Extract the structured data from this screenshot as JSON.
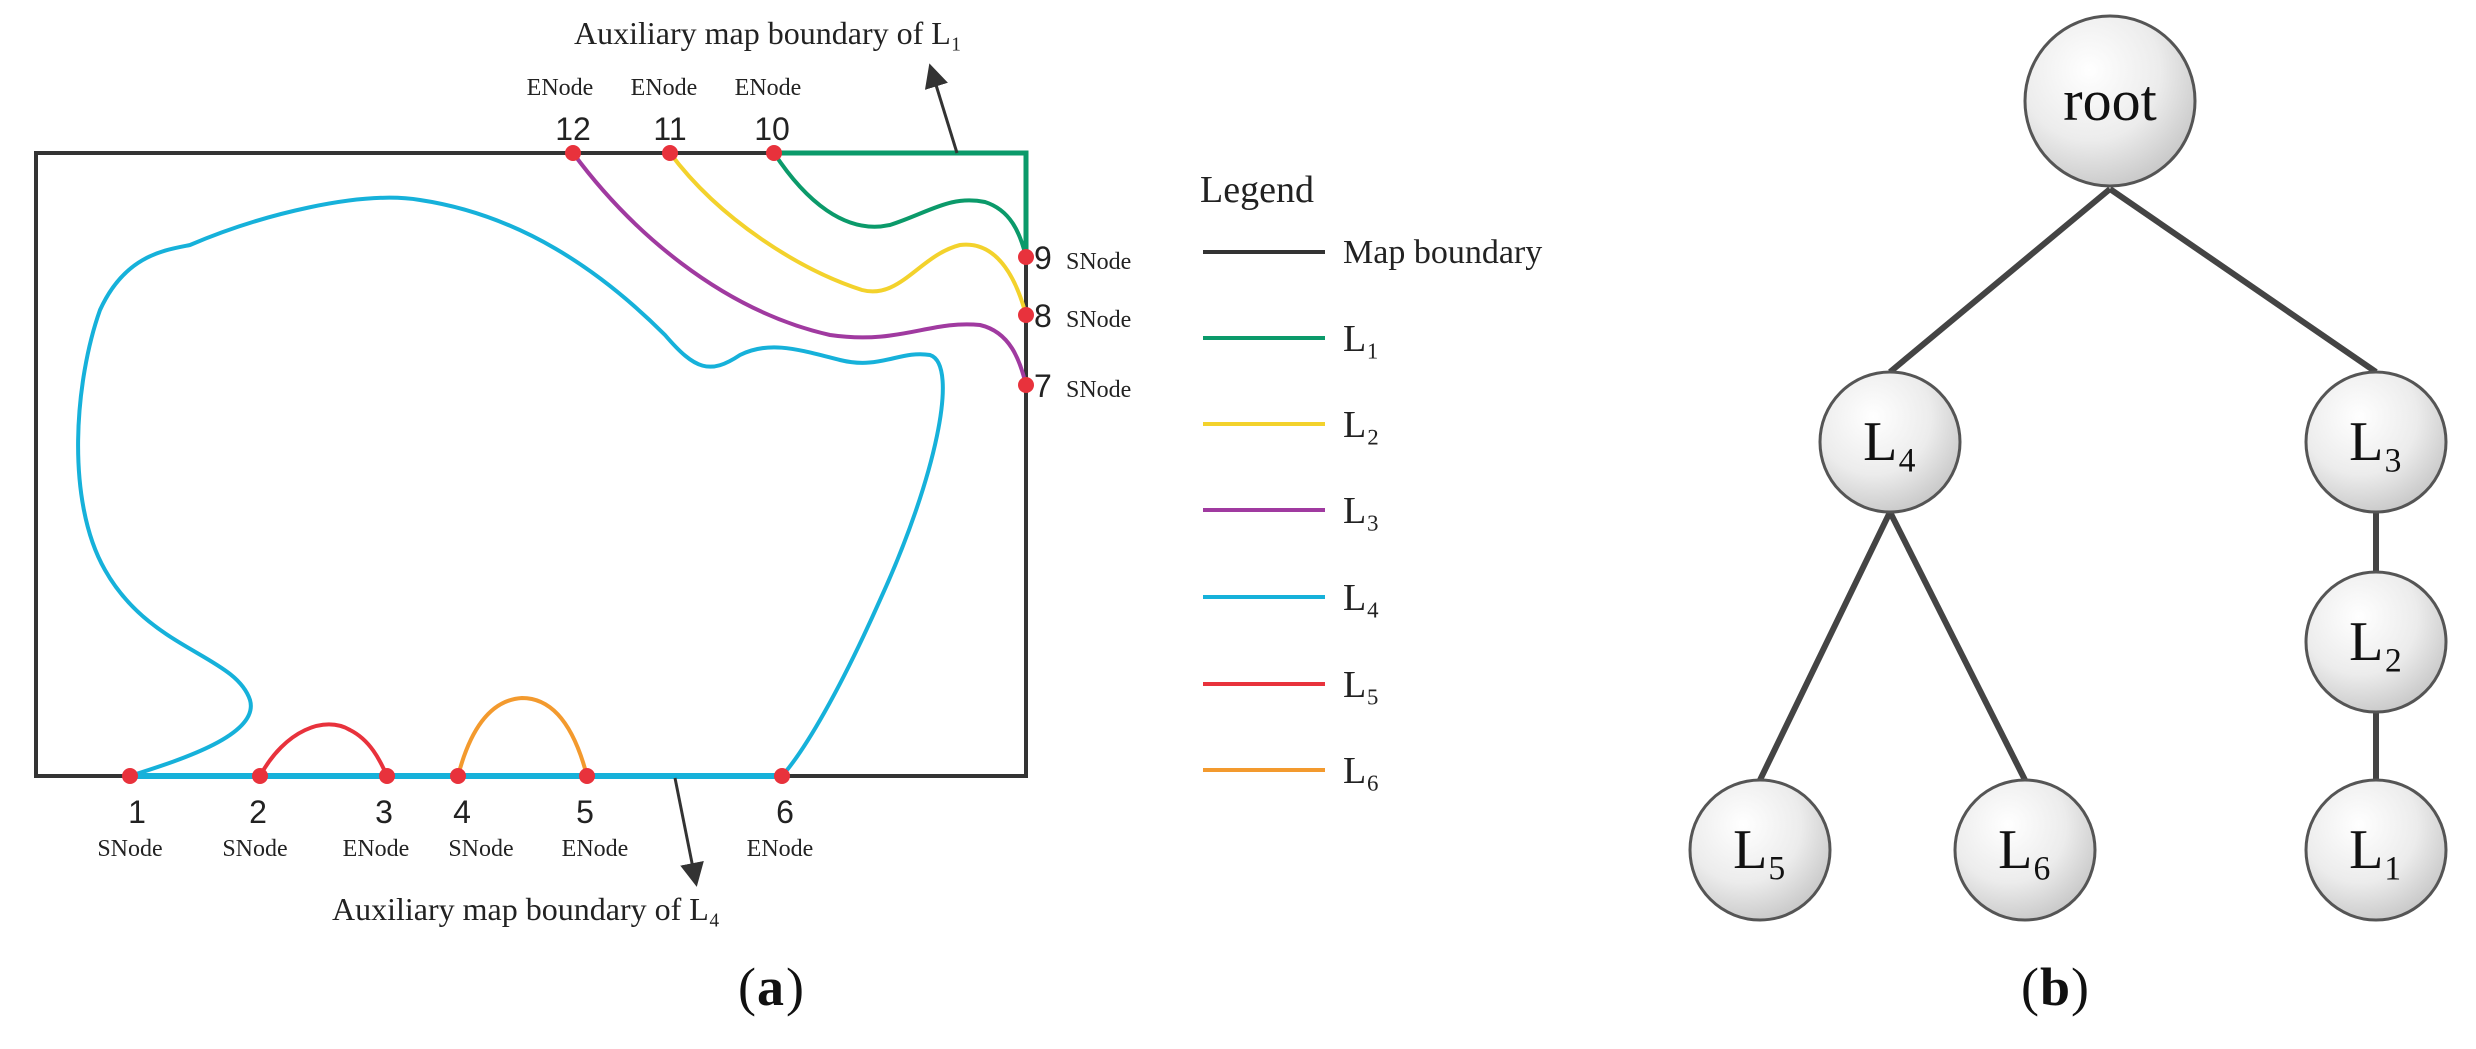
{
  "colors": {
    "boundary": "#333333",
    "L1": "#0b9a6a",
    "L2": "#f3d22c",
    "L3": "#a03aa0",
    "L4": "#16b1da",
    "L5": "#e8323c",
    "L6": "#f39a2e",
    "node": "#e8323c"
  },
  "panel_a": {
    "annotation_top": "Auxiliary map boundary of L₁",
    "annotation_bottom": "Auxiliary map boundary of L₄",
    "caption": "a",
    "nodes": [
      {
        "num": "1",
        "type": "SNode"
      },
      {
        "num": "2",
        "type": "SNode"
      },
      {
        "num": "3",
        "type": "ENode"
      },
      {
        "num": "4",
        "type": "SNode"
      },
      {
        "num": "5",
        "type": "ENode"
      },
      {
        "num": "6",
        "type": "ENode"
      },
      {
        "num": "7",
        "type": "SNode"
      },
      {
        "num": "8",
        "type": "SNode"
      },
      {
        "num": "9",
        "type": "SNode"
      },
      {
        "num": "10",
        "type": "ENode"
      },
      {
        "num": "11",
        "type": "ENode"
      },
      {
        "num": "12",
        "type": "ENode"
      }
    ],
    "legend": {
      "title": "Legend",
      "items": [
        {
          "label": "Map boundary",
          "color": "#333333"
        },
        {
          "label": "L₁",
          "color": "#0b9a6a"
        },
        {
          "label": "L₂",
          "color": "#f3d22c"
        },
        {
          "label": "L₃",
          "color": "#a03aa0"
        },
        {
          "label": "L₄",
          "color": "#16b1da"
        },
        {
          "label": "L₅",
          "color": "#e8323c"
        },
        {
          "label": "L₆",
          "color": "#f39a2e"
        }
      ]
    }
  },
  "panel_b": {
    "caption": "b",
    "tree": {
      "root": "root",
      "L4": "L₄",
      "L3": "L₃",
      "L5": "L₅",
      "L6": "L₆",
      "L2": "L₂",
      "L1": "L₁"
    }
  }
}
